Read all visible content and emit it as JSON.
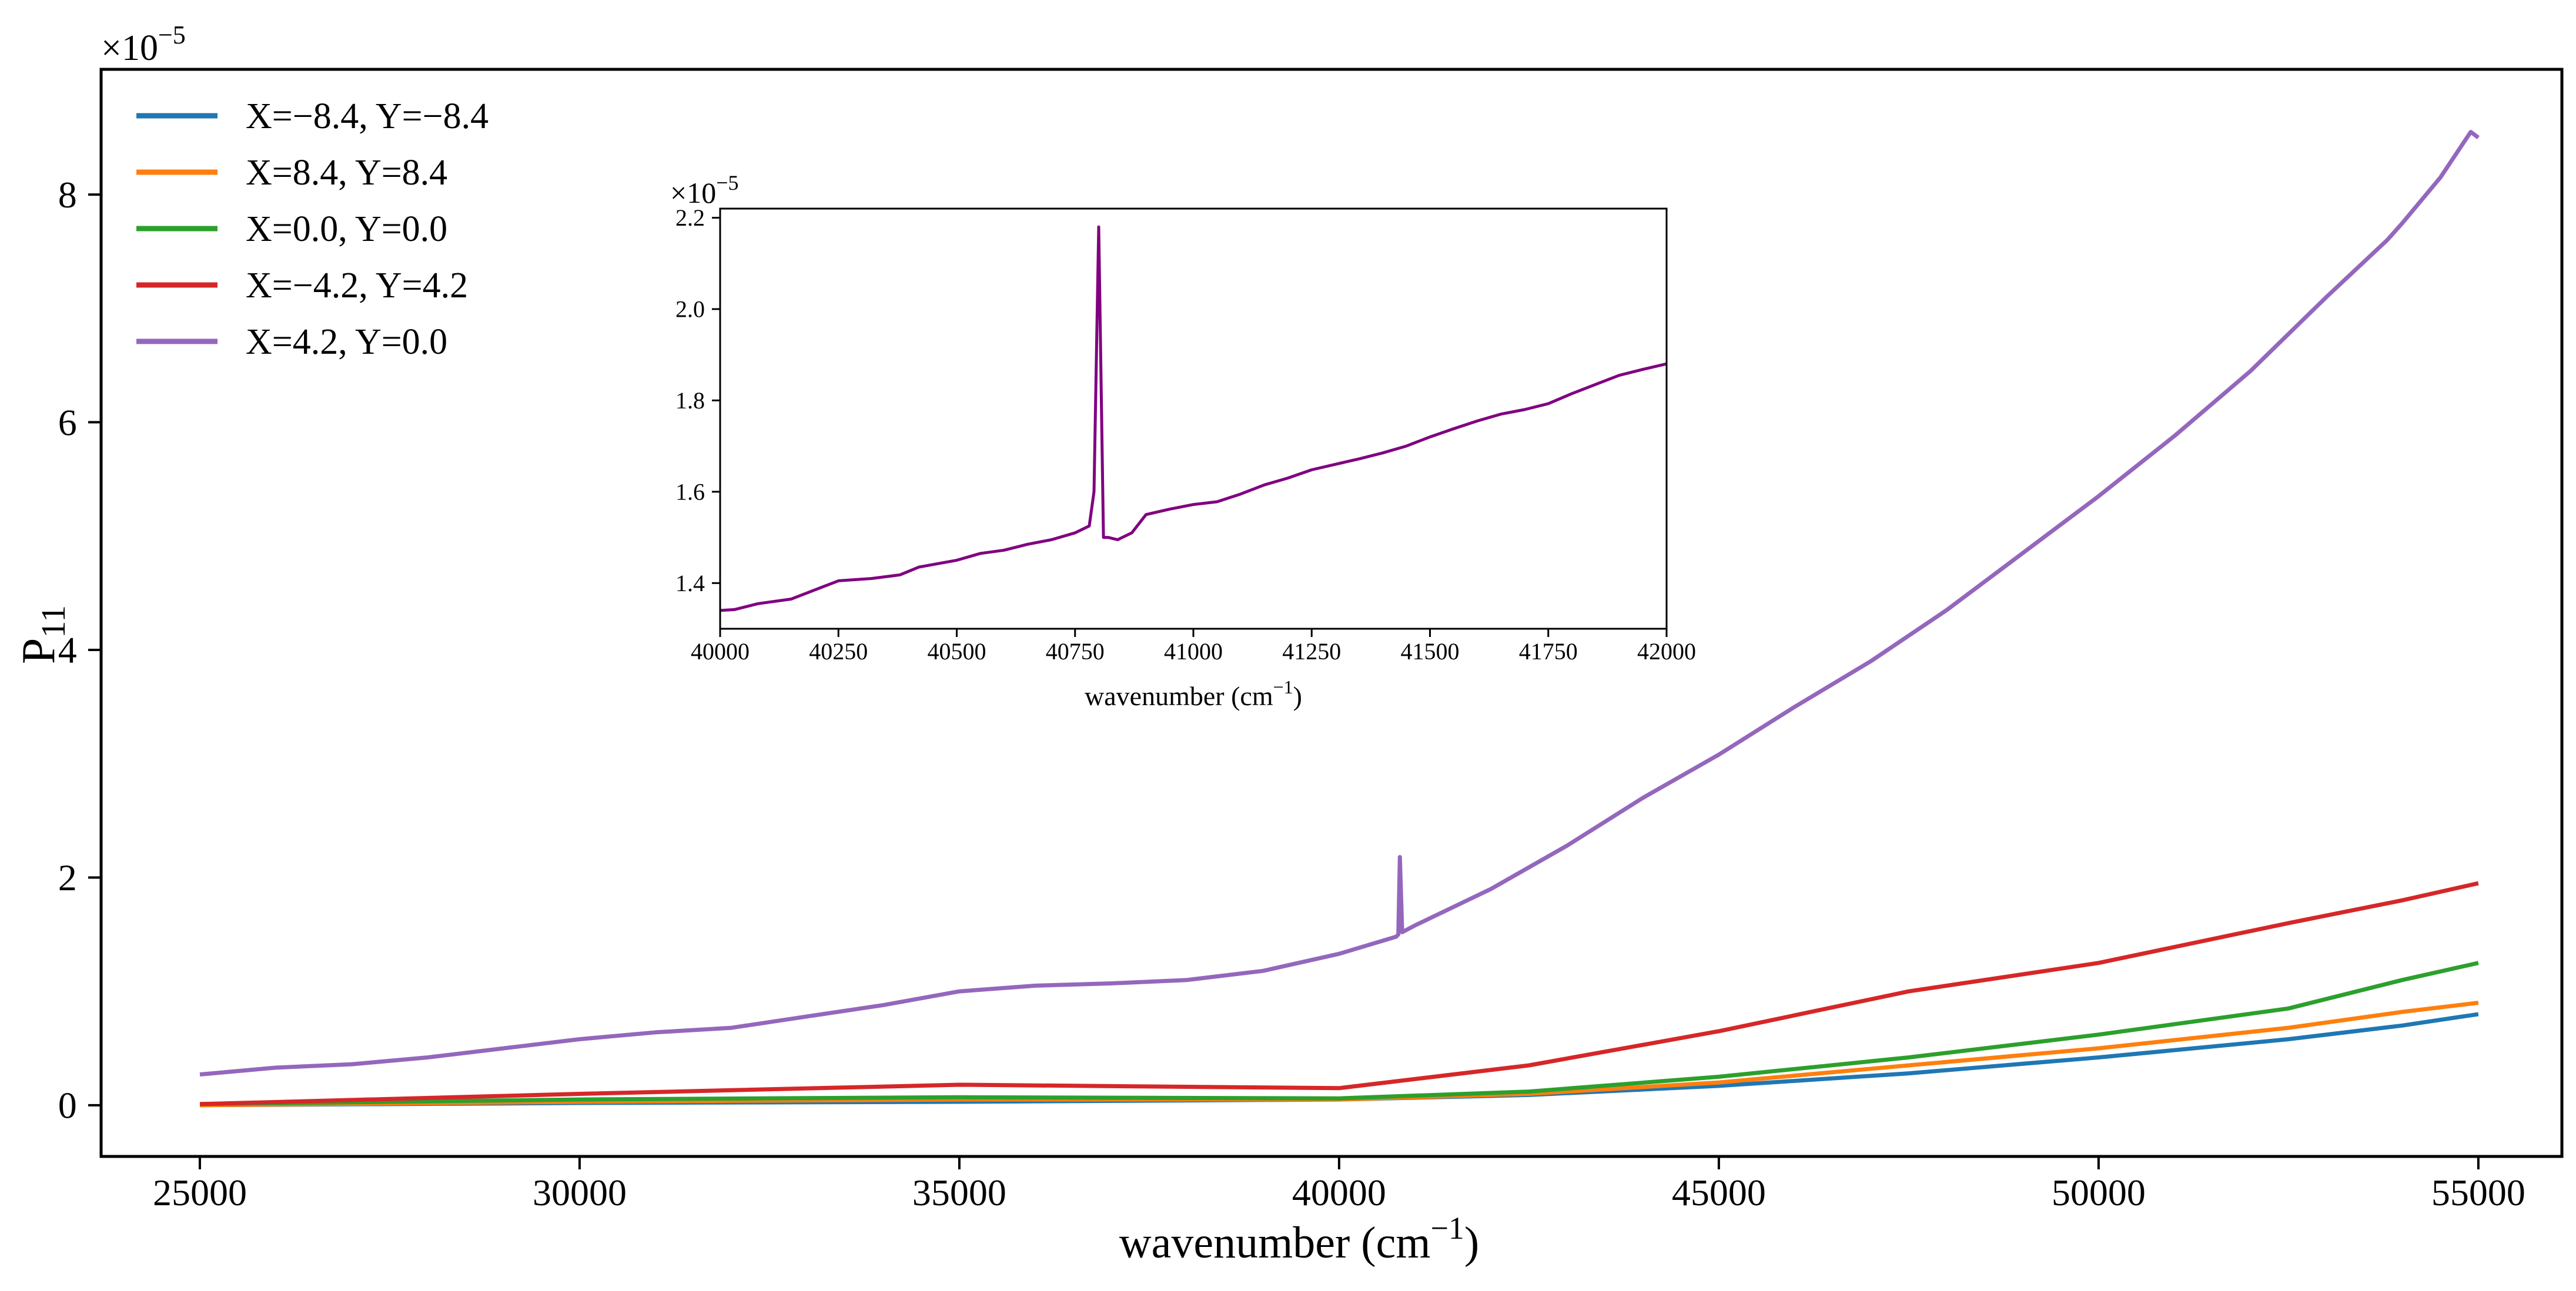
{
  "chart_data": [
    {
      "type": "line",
      "role": "main",
      "xlabel": "wavenumber (cm",
      "xlabel_sup": "−1",
      "xlabel_close": ")",
      "ylabel": "P",
      "ylabel_sub": "11",
      "y_multiplier_base": "×10",
      "y_multiplier_exp": "−5",
      "xlim": [
        23700,
        56100
      ],
      "ylim": [
        -0.45,
        9.1
      ],
      "xticks": [
        25000,
        30000,
        35000,
        40000,
        45000,
        50000,
        55000
      ],
      "xtick_labels": [
        "25000",
        "30000",
        "35000",
        "40000",
        "45000",
        "50000",
        "55000"
      ],
      "yticks": [
        0,
        2,
        4,
        6,
        8
      ],
      "ytick_labels": [
        "0",
        "2",
        "4",
        "6",
        "8"
      ],
      "legend_position": "top-left",
      "series": [
        {
          "name": "X=−8.4, Y=−8.4",
          "color": "#1f77b4",
          "x": [
            25000,
            30000,
            35000,
            40000,
            42500,
            45000,
            47500,
            50000,
            52500,
            54000,
            55000
          ],
          "y": [
            0.0,
            0.02,
            0.03,
            0.05,
            0.09,
            0.17,
            0.28,
            0.42,
            0.58,
            0.7,
            0.8
          ]
        },
        {
          "name": "X=8.4, Y=8.4",
          "color": "#ff7f0e",
          "x": [
            25000,
            30000,
            35000,
            40000,
            42500,
            45000,
            47500,
            50000,
            52500,
            54000,
            55000
          ],
          "y": [
            0.0,
            0.03,
            0.05,
            0.05,
            0.1,
            0.2,
            0.35,
            0.5,
            0.68,
            0.82,
            0.9
          ]
        },
        {
          "name": "X=0.0, Y=0.0",
          "color": "#2ca02c",
          "x": [
            25000,
            30000,
            35000,
            40000,
            42500,
            45000,
            47500,
            50000,
            52500,
            54000,
            55000
          ],
          "y": [
            0.01,
            0.05,
            0.07,
            0.06,
            0.12,
            0.25,
            0.42,
            0.62,
            0.85,
            1.1,
            1.25
          ]
        },
        {
          "name": "X=−4.2, Y=4.2",
          "color": "#d62728",
          "x": [
            25000,
            30000,
            35000,
            40000,
            42500,
            45000,
            47500,
            50000,
            52500,
            54000,
            55000
          ],
          "y": [
            0.01,
            0.1,
            0.18,
            0.15,
            0.35,
            0.65,
            1.0,
            1.25,
            1.6,
            1.8,
            1.95
          ]
        },
        {
          "name": "X=4.2, Y=0.0",
          "color": "#9467bd",
          "x": [
            25000,
            26000,
            27000,
            28000,
            29000,
            30000,
            31000,
            32000,
            33000,
            34000,
            35000,
            36000,
            37000,
            38000,
            39000,
            40000,
            40750,
            40780,
            40800,
            40830,
            41000,
            42000,
            43000,
            44000,
            45000,
            46000,
            47000,
            48000,
            49000,
            50000,
            51000,
            52000,
            53000,
            53800,
            54000,
            54500,
            54900,
            55000
          ],
          "y": [
            0.27,
            0.33,
            0.36,
            0.42,
            0.5,
            0.58,
            0.64,
            0.68,
            0.78,
            0.88,
            1.0,
            1.05,
            1.07,
            1.1,
            1.18,
            1.33,
            1.48,
            1.5,
            2.18,
            1.52,
            1.58,
            1.9,
            2.28,
            2.7,
            3.08,
            3.5,
            3.9,
            4.35,
            4.85,
            5.35,
            5.88,
            6.45,
            7.1,
            7.6,
            7.75,
            8.15,
            8.55,
            8.5
          ]
        }
      ]
    },
    {
      "type": "line",
      "role": "inset",
      "xlabel": "wavenumber (cm",
      "xlabel_sup": "−1",
      "xlabel_close": ")",
      "y_multiplier_base": "×10",
      "y_multiplier_exp": "−5",
      "xlim": [
        40000,
        42000
      ],
      "ylim": [
        1.3,
        2.22
      ],
      "xticks": [
        40000,
        40250,
        40500,
        40750,
        41000,
        41250,
        41500,
        41750,
        42000
      ],
      "xtick_labels": [
        "40000",
        "40250",
        "40500",
        "40750",
        "41000",
        "41250",
        "41500",
        "41750",
        "42000"
      ],
      "yticks": [
        1.4,
        1.6,
        1.8,
        2.0,
        2.2
      ],
      "ytick_labels": [
        "1.4",
        "1.6",
        "1.8",
        "2.0",
        "2.2"
      ],
      "series": [
        {
          "color": "#800080",
          "x": [
            40000,
            40030,
            40080,
            40150,
            40200,
            40250,
            40320,
            40380,
            40420,
            40500,
            40550,
            40600,
            40650,
            40700,
            40750,
            40780,
            40790,
            40800,
            40810,
            40820,
            40840,
            40870,
            40900,
            40950,
            41000,
            41050,
            41100,
            41150,
            41200,
            41250,
            41300,
            41350,
            41400,
            41450,
            41500,
            41550,
            41600,
            41650,
            41700,
            41750,
            41800,
            41850,
            41900,
            41950,
            42000
          ],
          "y": [
            1.34,
            1.342,
            1.355,
            1.365,
            1.385,
            1.405,
            1.41,
            1.418,
            1.435,
            1.45,
            1.465,
            1.472,
            1.485,
            1.495,
            1.51,
            1.525,
            1.6,
            2.18,
            1.5,
            1.5,
            1.495,
            1.51,
            1.55,
            1.562,
            1.572,
            1.578,
            1.595,
            1.615,
            1.63,
            1.648,
            1.66,
            1.672,
            1.685,
            1.7,
            1.72,
            1.738,
            1.755,
            1.77,
            1.78,
            1.793,
            1.815,
            1.835,
            1.855,
            1.868,
            1.88
          ]
        }
      ]
    }
  ]
}
